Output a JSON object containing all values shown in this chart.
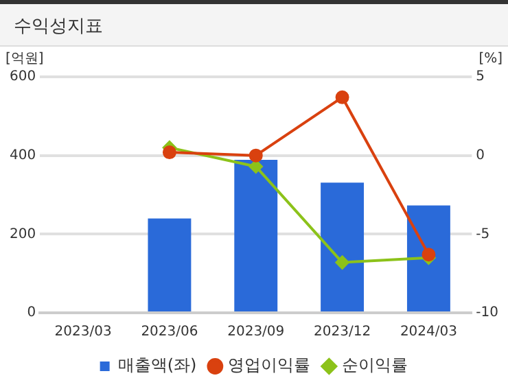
{
  "chart_data": {
    "type": "bar",
    "title": "수익성지표",
    "ylabel": "[억원]",
    "y2label": "[%]",
    "categories": [
      "2023/03",
      "2023/06",
      "2023/09",
      "2023/12",
      "2024/03"
    ],
    "series": [
      {
        "name": "매출액(좌)",
        "color": "#2a6ad9",
        "values": [
          null,
          240,
          389,
          331,
          273
        ]
      },
      {
        "name": "영업이익률",
        "type": "line",
        "axis": "y2",
        "marker": "circle",
        "color": "#d9410f",
        "values": [
          null,
          0.2,
          0.0,
          3.7,
          -6.3
        ]
      },
      {
        "name": "순이익률",
        "type": "line",
        "axis": "y2",
        "marker": "diamond",
        "color": "#8cc21a",
        "values": [
          null,
          0.5,
          -0.7,
          -6.8,
          -6.5
        ]
      }
    ],
    "ylim": [
      0,
      600
    ],
    "yticks": [
      0,
      200,
      400,
      600
    ],
    "y2lim": [
      -10,
      5
    ],
    "y2ticks": [
      -10,
      -5,
      0,
      5
    ],
    "grid": "y",
    "legend": "bottom"
  }
}
